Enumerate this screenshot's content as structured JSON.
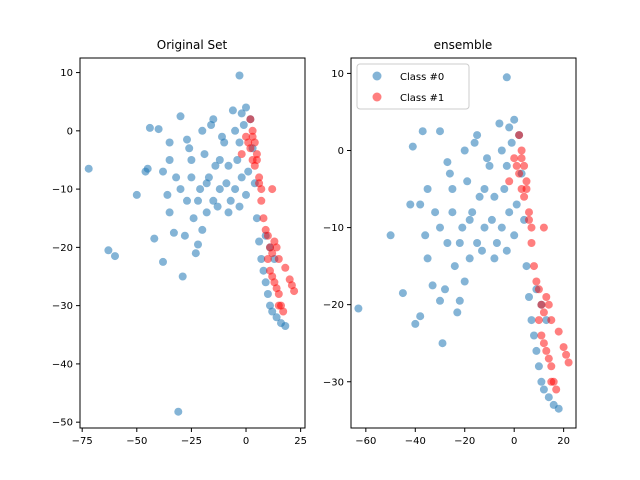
{
  "chart_data": [
    {
      "type": "scatter",
      "title": "Original Set",
      "xlabel": "",
      "ylabel": "",
      "xlim": [
        -76,
        27
      ],
      "ylim": [
        -51,
        12.5
      ],
      "xticks": [
        -75,
        -50,
        -25,
        0,
        25
      ],
      "yticks": [
        -50,
        -40,
        -30,
        -20,
        -10,
        0,
        10
      ],
      "grid": false,
      "legend": null,
      "series": [
        {
          "color": "#1f77b4",
          "opacity": 0.55,
          "points": [
            [
              -3,
              9.5
            ],
            [
              -72,
              -6.5
            ],
            [
              -63,
              -20.5
            ],
            [
              -60,
              -21.5
            ],
            [
              -50,
              -11
            ],
            [
              -42,
              -18.5
            ],
            [
              -38,
              -22.5
            ],
            [
              -35,
              -14
            ],
            [
              -33,
              -17.5
            ],
            [
              -29,
              -25
            ],
            [
              -31,
              -48.2
            ],
            [
              -45,
              -6.5
            ],
            [
              -46,
              -7
            ],
            [
              -44,
              0.5
            ],
            [
              -40,
              0.3
            ],
            [
              -35,
              -2
            ],
            [
              -30,
              2.5
            ],
            [
              -27,
              -1.5
            ],
            [
              -25,
              -5
            ],
            [
              -22,
              -19.5
            ],
            [
              -20,
              -17
            ],
            [
              -18,
              -9
            ],
            [
              -15,
              -12
            ],
            [
              -12,
              -5
            ],
            [
              -10,
              -2
            ],
            [
              -8,
              -14
            ],
            [
              -5,
              -10
            ],
            [
              -3,
              -2
            ],
            [
              -2,
              3
            ],
            [
              -1,
              1
            ],
            [
              0,
              4
            ],
            [
              2,
              2
            ],
            [
              -20,
              0
            ],
            [
              -25,
              -8
            ],
            [
              -30,
              -10
            ],
            [
              -35,
              -5
            ],
            [
              -15,
              2
            ],
            [
              -12,
              -10
            ],
            [
              -18,
              -14
            ],
            [
              -22,
              -12
            ],
            [
              -26,
              -3
            ],
            [
              -8,
              -6
            ],
            [
              -5,
              0
            ],
            [
              -6,
              3.5
            ],
            [
              -16,
              1
            ],
            [
              -19,
              -4
            ],
            [
              -11,
              -1
            ],
            [
              -9,
              -9
            ],
            [
              -4,
              -5
            ],
            [
              -2,
              -8
            ],
            [
              -14,
              -6
            ],
            [
              -17,
              -8
            ],
            [
              -21,
              -10
            ],
            [
              -24,
              -15
            ],
            [
              -27,
              -12
            ],
            [
              -32,
              -8
            ],
            [
              -36,
              -11
            ],
            [
              -38,
              -7
            ],
            [
              -28,
              -18
            ],
            [
              -23,
              -21
            ],
            [
              -13,
              -13
            ],
            [
              -7,
              -12
            ],
            [
              -3,
              -13
            ],
            [
              0,
              -11
            ],
            [
              1,
              -7
            ],
            [
              3,
              -3
            ],
            [
              4,
              -9
            ],
            [
              5,
              -15
            ],
            [
              6,
              -19
            ],
            [
              7,
              -22
            ],
            [
              8,
              -24
            ],
            [
              9,
              -26
            ],
            [
              10,
              -28
            ],
            [
              11,
              -30
            ],
            [
              12,
              -31
            ],
            [
              14,
              -32
            ],
            [
              16,
              -33
            ],
            [
              18,
              -33.5
            ],
            [
              13,
              -22
            ],
            [
              11,
              -20
            ],
            [
              9,
              -18
            ]
          ]
        },
        {
          "color": "#ff0000",
          "opacity": 0.5,
          "points": [
            [
              12,
              -10
            ],
            [
              2,
              2
            ],
            [
              3,
              0
            ],
            [
              4,
              -2
            ],
            [
              5,
              -4
            ],
            [
              6,
              -8
            ],
            [
              7,
              -12
            ],
            [
              8,
              -15
            ],
            [
              9,
              -17
            ],
            [
              10,
              -18
            ],
            [
              11,
              -20
            ],
            [
              12,
              -21
            ],
            [
              13,
              -19
            ],
            [
              14,
              -20
            ],
            [
              15,
              -22
            ],
            [
              10,
              -22
            ],
            [
              11,
              -24
            ],
            [
              12,
              -25
            ],
            [
              13,
              -26
            ],
            [
              14,
              -27
            ],
            [
              15,
              -28
            ],
            [
              16,
              -30
            ],
            [
              17,
              -31
            ],
            [
              20,
              -25.5
            ],
            [
              22,
              -27.5
            ],
            [
              21,
              -26.5
            ],
            [
              18,
              -23.5
            ],
            [
              15,
              -30
            ],
            [
              3,
              -1
            ],
            [
              5,
              -5
            ],
            [
              4,
              -6
            ],
            [
              6,
              -9
            ],
            [
              7,
              -10
            ],
            [
              2,
              -3
            ],
            [
              3,
              -5
            ],
            [
              1,
              -2
            ],
            [
              -2,
              -4
            ],
            [
              0,
              -1
            ]
          ]
        }
      ]
    },
    {
      "type": "scatter",
      "title": "ensemble",
      "xlabel": "",
      "ylabel": "",
      "xlim": [
        -66,
        25
      ],
      "ylim": [
        -36,
        12
      ],
      "xticks": [
        -60,
        -40,
        -20,
        0,
        20
      ],
      "yticks": [
        -30,
        -20,
        -10,
        0,
        10
      ],
      "grid": false,
      "legend": {
        "placement": "upper-left",
        "entries": [
          "Class #0",
          "Class #1"
        ]
      },
      "series": [
        {
          "name": "Class #0",
          "color": "#1f77b4",
          "opacity": 0.55,
          "points": [
            [
              -3,
              9.5
            ],
            [
              -63,
              -20.5
            ],
            [
              -50,
              -11
            ],
            [
              -45,
              -18.5
            ],
            [
              -40,
              -22.5
            ],
            [
              -38,
              -21.5
            ],
            [
              -35,
              -14
            ],
            [
              -33,
              -17.5
            ],
            [
              -30,
              -19.5
            ],
            [
              -29,
              -25
            ],
            [
              -42,
              -7
            ],
            [
              -41,
              0.5
            ],
            [
              -37,
              2.5
            ],
            [
              -30,
              2.5
            ],
            [
              -27,
              -1.5
            ],
            [
              -25,
              -5
            ],
            [
              -22,
              -19.5
            ],
            [
              -20,
              -17
            ],
            [
              -18,
              -9
            ],
            [
              -15,
              -12
            ],
            [
              -12,
              -5
            ],
            [
              -10,
              -2
            ],
            [
              -8,
              -14
            ],
            [
              -5,
              -10
            ],
            [
              -3,
              -2
            ],
            [
              -2,
              3
            ],
            [
              -1,
              1
            ],
            [
              0,
              4
            ],
            [
              2,
              2
            ],
            [
              -20,
              0
            ],
            [
              -25,
              -8
            ],
            [
              -30,
              -10
            ],
            [
              -35,
              -5
            ],
            [
              -15,
              2
            ],
            [
              -12,
              -10
            ],
            [
              -18,
              -14
            ],
            [
              -22,
              -12
            ],
            [
              -26,
              -3
            ],
            [
              -8,
              -6
            ],
            [
              -5,
              0
            ],
            [
              -6,
              3.5
            ],
            [
              -16,
              1
            ],
            [
              -19,
              -4
            ],
            [
              -11,
              -1
            ],
            [
              -9,
              -9
            ],
            [
              -4,
              -5
            ],
            [
              -2,
              -8
            ],
            [
              -14,
              -6
            ],
            [
              -17,
              -8
            ],
            [
              -21,
              -10
            ],
            [
              -24,
              -15
            ],
            [
              -27,
              -12
            ],
            [
              -32,
              -8
            ],
            [
              -36,
              -11
            ],
            [
              -38,
              -7
            ],
            [
              -28,
              -18
            ],
            [
              -23,
              -21
            ],
            [
              -13,
              -13
            ],
            [
              -7,
              -12
            ],
            [
              -3,
              -13
            ],
            [
              0,
              -11
            ],
            [
              1,
              -7
            ],
            [
              3,
              -3
            ],
            [
              4,
              -9
            ],
            [
              5,
              -15
            ],
            [
              6,
              -19
            ],
            [
              7,
              -22
            ],
            [
              8,
              -24
            ],
            [
              9,
              -26
            ],
            [
              10,
              -28
            ],
            [
              11,
              -30
            ],
            [
              12,
              -31
            ],
            [
              14,
              -32
            ],
            [
              16,
              -33
            ],
            [
              18,
              -33.5
            ],
            [
              13,
              -22
            ],
            [
              11,
              -20
            ],
            [
              9,
              -18
            ]
          ]
        },
        {
          "name": "Class #1",
          "color": "#ff0000",
          "opacity": 0.5,
          "points": [
            [
              12,
              -10
            ],
            [
              2,
              2
            ],
            [
              3,
              0
            ],
            [
              4,
              -2
            ],
            [
              5,
              -4
            ],
            [
              6,
              -8
            ],
            [
              7,
              -12
            ],
            [
              8,
              -15
            ],
            [
              9,
              -17
            ],
            [
              10,
              -18
            ],
            [
              11,
              -20
            ],
            [
              12,
              -21
            ],
            [
              13,
              -19
            ],
            [
              14,
              -20
            ],
            [
              15,
              -22
            ],
            [
              10,
              -22
            ],
            [
              11,
              -24
            ],
            [
              12,
              -25
            ],
            [
              13,
              -26
            ],
            [
              14,
              -27
            ],
            [
              15,
              -28
            ],
            [
              16,
              -30
            ],
            [
              17,
              -31
            ],
            [
              20,
              -25.5
            ],
            [
              22,
              -27.5
            ],
            [
              21,
              -26.5
            ],
            [
              18,
              -23.5
            ],
            [
              15,
              -30
            ],
            [
              3,
              -1
            ],
            [
              5,
              -5
            ],
            [
              4,
              -6
            ],
            [
              6,
              -9
            ],
            [
              7,
              -10
            ],
            [
              2,
              -3
            ],
            [
              3,
              -5
            ],
            [
              1,
              -2
            ],
            [
              -2,
              -4
            ],
            [
              0,
              -1
            ]
          ]
        }
      ]
    }
  ]
}
